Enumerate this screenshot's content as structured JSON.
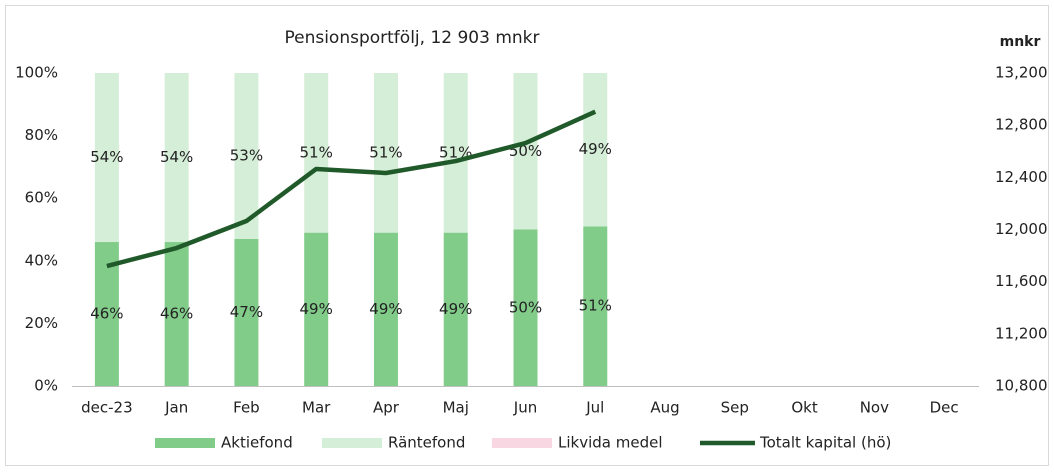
{
  "chart_data": {
    "type": "bar",
    "stacked": true,
    "title": "Pensionsportfölj, 12 903 mnkr",
    "y2_label": "mnkr",
    "categories": [
      "dec-23",
      "Jan",
      "Feb",
      "Mar",
      "Apr",
      "Maj",
      "Jun",
      "Jul",
      "Aug",
      "Sep",
      "Okt",
      "Nov",
      "Dec"
    ],
    "series": [
      {
        "name": "Aktiefond",
        "color": "#82cc8a",
        "values": [
          46,
          46,
          47,
          49,
          49,
          49,
          50,
          51,
          null,
          null,
          null,
          null,
          null
        ],
        "value_labels": [
          "46%",
          "46%",
          "47%",
          "49%",
          "49%",
          "49%",
          "50%",
          "51%",
          null,
          null,
          null,
          null,
          null
        ]
      },
      {
        "name": "Räntefond",
        "color": "#d5eed7",
        "values": [
          54,
          54,
          53,
          51,
          51,
          51,
          50,
          49,
          null,
          null,
          null,
          null,
          null
        ],
        "value_labels": [
          "54%",
          "54%",
          "53%",
          "51%",
          "51%",
          "51%",
          "50%",
          "49%",
          null,
          null,
          null,
          null,
          null
        ]
      },
      {
        "name": "Likvida medel",
        "color": "#f8d7e3",
        "values": [
          0,
          0,
          0,
          0,
          0,
          0,
          0,
          0,
          null,
          null,
          null,
          null,
          null
        ]
      },
      {
        "name": "Totalt kapital (hö)",
        "color": "#215a2a",
        "type": "line",
        "axis": "y2",
        "values": [
          11720,
          11858,
          12065,
          12464,
          12433,
          12525,
          12663,
          12903,
          null,
          null,
          null,
          null,
          null
        ]
      }
    ],
    "ylim": [
      0,
      100
    ],
    "yticks": [
      {
        "value": 0,
        "label": "0%"
      },
      {
        "value": 20,
        "label": "20%"
      },
      {
        "value": 40,
        "label": "40%"
      },
      {
        "value": 60,
        "label": "60%"
      },
      {
        "value": 80,
        "label": "80%"
      },
      {
        "value": 100,
        "label": "100%"
      }
    ],
    "y2lim": [
      10800,
      13200
    ],
    "y2ticks": [
      {
        "value": 10800,
        "label": "10,800"
      },
      {
        "value": 11200,
        "label": "11,200"
      },
      {
        "value": 11600,
        "label": "11,600"
      },
      {
        "value": 12000,
        "label": "12,000"
      },
      {
        "value": 12400,
        "label": "12,400"
      },
      {
        "value": 12800,
        "label": "12,800"
      },
      {
        "value": 13200,
        "label": "13,200"
      }
    ],
    "legend": "bottom",
    "grid": false
  }
}
